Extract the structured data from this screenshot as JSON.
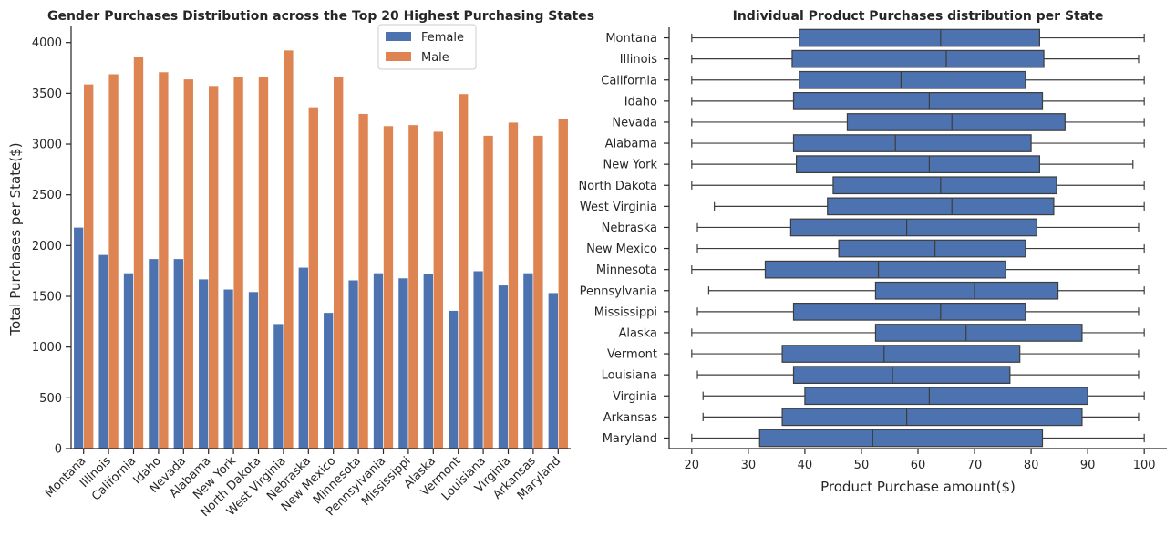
{
  "colors": {
    "female": "#4c72b0",
    "male": "#dd8452",
    "axis": "#262626",
    "box_edge": "#3d3d3d"
  },
  "chart_data": [
    {
      "type": "bar",
      "title": "Gender Purchases Distribution across the Top 20 Highest Purchasing States",
      "xlabel": "",
      "ylabel": "Total Purchases per State($)",
      "ylim": [
        0,
        4150
      ],
      "yticks": [
        0,
        500,
        1000,
        1500,
        2000,
        2500,
        3000,
        3500,
        4000
      ],
      "categories": [
        "Montana",
        "Illinois",
        "California",
        "Idaho",
        "Nevada",
        "Alabama",
        "New York",
        "North Dakota",
        "West Virginia",
        "Nebraska",
        "New Mexico",
        "Minnesota",
        "Pennsylvania",
        "Mississippi",
        "Alaska",
        "Vermont",
        "Louisiana",
        "Virginia",
        "Arkansas",
        "Maryland"
      ],
      "series": [
        {
          "name": "Female",
          "values": [
            2180,
            1910,
            1730,
            1870,
            1870,
            1670,
            1570,
            1545,
            1230,
            1785,
            1340,
            1660,
            1730,
            1680,
            1720,
            1360,
            1750,
            1610,
            1730,
            1535
          ]
        },
        {
          "name": "Male",
          "values": [
            3590,
            3690,
            3860,
            3710,
            3640,
            3575,
            3665,
            3665,
            3925,
            3365,
            3665,
            3300,
            3180,
            3190,
            3125,
            3495,
            3085,
            3215,
            3085,
            3250
          ]
        }
      ],
      "legend": "top-center",
      "grid": false
    },
    {
      "type": "box",
      "title": "Individual Product Purchases distribution per State",
      "xlabel": "Product Purchase amount($)",
      "ylabel": "",
      "xlim": [
        16,
        104
      ],
      "xticks": [
        20,
        30,
        40,
        50,
        60,
        70,
        80,
        90,
        100
      ],
      "categories": [
        "Montana",
        "Illinois",
        "California",
        "Idaho",
        "Nevada",
        "Alabama",
        "New York",
        "North Dakota",
        "West Virginia",
        "Nebraska",
        "New Mexico",
        "Minnesota",
        "Pennsylvania",
        "Mississippi",
        "Alaska",
        "Vermont",
        "Louisiana",
        "Virginia",
        "Arkansas",
        "Maryland"
      ],
      "boxes": [
        {
          "min": 20,
          "q1": 39,
          "median": 64,
          "q3": 81.5,
          "max": 100
        },
        {
          "min": 20,
          "q1": 37.75,
          "median": 65,
          "q3": 82.25,
          "max": 99
        },
        {
          "min": 20,
          "q1": 39,
          "median": 57,
          "q3": 79,
          "max": 100
        },
        {
          "min": 20,
          "q1": 38,
          "median": 62,
          "q3": 82,
          "max": 100
        },
        {
          "min": 20,
          "q1": 47.5,
          "median": 66,
          "q3": 86,
          "max": 100
        },
        {
          "min": 20,
          "q1": 38,
          "median": 56,
          "q3": 80,
          "max": 100
        },
        {
          "min": 20,
          "q1": 38.5,
          "median": 62,
          "q3": 81.5,
          "max": 98
        },
        {
          "min": 20,
          "q1": 45,
          "median": 64,
          "q3": 84.5,
          "max": 100
        },
        {
          "min": 24,
          "q1": 44,
          "median": 66,
          "q3": 84,
          "max": 100
        },
        {
          "min": 21,
          "q1": 37.5,
          "median": 58,
          "q3": 81,
          "max": 99
        },
        {
          "min": 21,
          "q1": 46,
          "median": 63,
          "q3": 79,
          "max": 100
        },
        {
          "min": 20,
          "q1": 33,
          "median": 53,
          "q3": 75.5,
          "max": 99
        },
        {
          "min": 23,
          "q1": 52.5,
          "median": 70,
          "q3": 84.75,
          "max": 100
        },
        {
          "min": 21,
          "q1": 38,
          "median": 64,
          "q3": 79,
          "max": 99
        },
        {
          "min": 20,
          "q1": 52.5,
          "median": 68.5,
          "q3": 89,
          "max": 100
        },
        {
          "min": 20,
          "q1": 36,
          "median": 54,
          "q3": 78,
          "max": 99
        },
        {
          "min": 21,
          "q1": 38,
          "median": 55.5,
          "q3": 76.25,
          "max": 99
        },
        {
          "min": 22,
          "q1": 40,
          "median": 62,
          "q3": 90,
          "max": 100
        },
        {
          "min": 22,
          "q1": 36,
          "median": 58,
          "q3": 89,
          "max": 99
        },
        {
          "min": 20,
          "q1": 32,
          "median": 52,
          "q3": 82,
          "max": 100
        }
      ],
      "grid": false
    }
  ]
}
